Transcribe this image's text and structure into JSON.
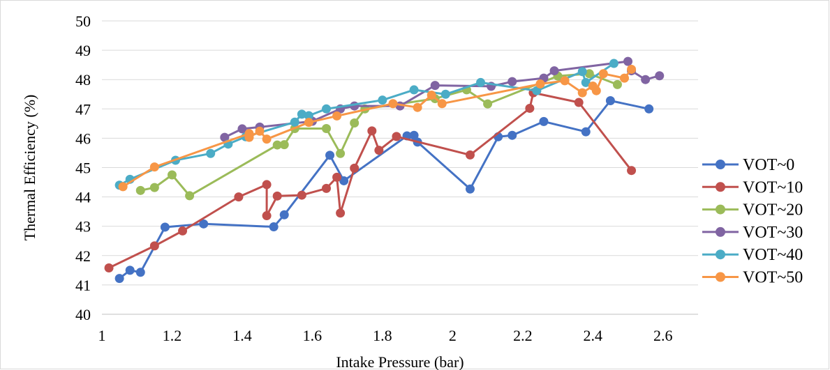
{
  "chart_data": {
    "type": "line",
    "title": "",
    "xlabel": "Intake Pressure (bar)",
    "ylabel": "Thermal Efficiency (%)",
    "xlim": [
      1,
      2.7
    ],
    "ylim": [
      40,
      50
    ],
    "x_ticks": [
      "1",
      "1.2",
      "1.4",
      "1.6",
      "1.8",
      "2",
      "2.2",
      "2.4",
      "2.6"
    ],
    "y_ticks": [
      "40",
      "41",
      "42",
      "43",
      "44",
      "45",
      "46",
      "47",
      "48",
      "49",
      "50"
    ],
    "grid": "horizontal",
    "legend_position": "right",
    "series": [
      {
        "name": "VOT~0",
        "color": "#4472C4",
        "points": [
          [
            1.05,
            41.22
          ],
          [
            1.08,
            41.5
          ],
          [
            1.11,
            41.43
          ],
          [
            1.18,
            42.97
          ],
          [
            1.29,
            43.08
          ],
          [
            1.49,
            42.98
          ],
          [
            1.52,
            43.39
          ],
          [
            1.65,
            45.42
          ],
          [
            1.69,
            44.55
          ],
          [
            1.87,
            46.08
          ],
          [
            1.89,
            46.1
          ],
          [
            1.9,
            45.87
          ],
          [
            2.05,
            44.27
          ],
          [
            2.13,
            46.05
          ],
          [
            2.17,
            46.1
          ],
          [
            2.26,
            46.57
          ],
          [
            2.38,
            46.22
          ],
          [
            2.45,
            47.28
          ],
          [
            2.56,
            47.0
          ]
        ]
      },
      {
        "name": "VOT~10",
        "color": "#C0504D",
        "points": [
          [
            1.02,
            41.58
          ],
          [
            1.15,
            42.33
          ],
          [
            1.23,
            42.84
          ],
          [
            1.39,
            44.0
          ],
          [
            1.47,
            44.42
          ],
          [
            1.47,
            43.36
          ],
          [
            1.5,
            44.03
          ],
          [
            1.57,
            44.06
          ],
          [
            1.64,
            44.29
          ],
          [
            1.67,
            44.67
          ],
          [
            1.68,
            43.45
          ],
          [
            1.72,
            44.98
          ],
          [
            1.77,
            46.25
          ],
          [
            1.79,
            45.59
          ],
          [
            1.84,
            46.06
          ],
          [
            2.05,
            45.43
          ],
          [
            2.22,
            47.02
          ],
          [
            2.23,
            47.55
          ],
          [
            2.36,
            47.22
          ],
          [
            2.51,
            44.9
          ]
        ]
      },
      {
        "name": "VOT~20",
        "color": "#9BBB59",
        "points": [
          [
            1.11,
            44.22
          ],
          [
            1.15,
            44.32
          ],
          [
            1.2,
            44.75
          ],
          [
            1.25,
            44.04
          ],
          [
            1.5,
            45.77
          ],
          [
            1.52,
            45.78
          ],
          [
            1.55,
            46.33
          ],
          [
            1.64,
            46.33
          ],
          [
            1.68,
            45.48
          ],
          [
            1.72,
            46.52
          ],
          [
            1.75,
            47.0
          ],
          [
            1.95,
            47.35
          ],
          [
            2.04,
            47.65
          ],
          [
            2.1,
            47.17
          ],
          [
            2.3,
            48.12
          ],
          [
            2.39,
            48.2
          ],
          [
            2.47,
            47.83
          ]
        ]
      },
      {
        "name": "VOT~30",
        "color": "#8064A2",
        "points": [
          [
            1.35,
            46.03
          ],
          [
            1.4,
            46.32
          ],
          [
            1.45,
            46.38
          ],
          [
            1.6,
            46.58
          ],
          [
            1.68,
            47.0
          ],
          [
            1.72,
            47.1
          ],
          [
            1.85,
            47.1
          ],
          [
            1.95,
            47.8
          ],
          [
            2.11,
            47.77
          ],
          [
            2.17,
            47.93
          ],
          [
            2.26,
            48.05
          ],
          [
            2.29,
            48.3
          ],
          [
            2.5,
            48.62
          ],
          [
            2.51,
            48.3
          ],
          [
            2.55,
            48.0
          ],
          [
            2.59,
            48.13
          ]
        ]
      },
      {
        "name": "VOT~40",
        "color": "#4BACC6",
        "points": [
          [
            1.05,
            44.4
          ],
          [
            1.08,
            44.6
          ],
          [
            1.21,
            45.25
          ],
          [
            1.31,
            45.48
          ],
          [
            1.36,
            45.8
          ],
          [
            1.41,
            46.05
          ],
          [
            1.55,
            46.55
          ],
          [
            1.57,
            46.82
          ],
          [
            1.59,
            46.77
          ],
          [
            1.64,
            47.0
          ],
          [
            1.8,
            47.3
          ],
          [
            1.89,
            47.65
          ],
          [
            1.98,
            47.5
          ],
          [
            2.08,
            47.9
          ],
          [
            2.24,
            47.62
          ],
          [
            2.37,
            48.27
          ],
          [
            2.38,
            47.9
          ],
          [
            2.46,
            48.55
          ]
        ]
      },
      {
        "name": "VOT~50",
        "color": "#F79646",
        "points": [
          [
            1.06,
            44.35
          ],
          [
            1.15,
            45.02
          ],
          [
            1.42,
            46.16
          ],
          [
            1.42,
            46.03
          ],
          [
            1.45,
            46.24
          ],
          [
            1.47,
            45.97
          ],
          [
            1.59,
            46.54
          ],
          [
            1.67,
            46.76
          ],
          [
            1.83,
            47.18
          ],
          [
            1.9,
            47.05
          ],
          [
            1.94,
            47.47
          ],
          [
            1.97,
            47.18
          ],
          [
            2.25,
            47.85
          ],
          [
            2.32,
            47.96
          ],
          [
            2.37,
            47.55
          ],
          [
            2.4,
            47.78
          ],
          [
            2.41,
            47.62
          ],
          [
            2.43,
            48.2
          ],
          [
            2.49,
            48.05
          ],
          [
            2.51,
            48.35
          ]
        ]
      }
    ]
  }
}
